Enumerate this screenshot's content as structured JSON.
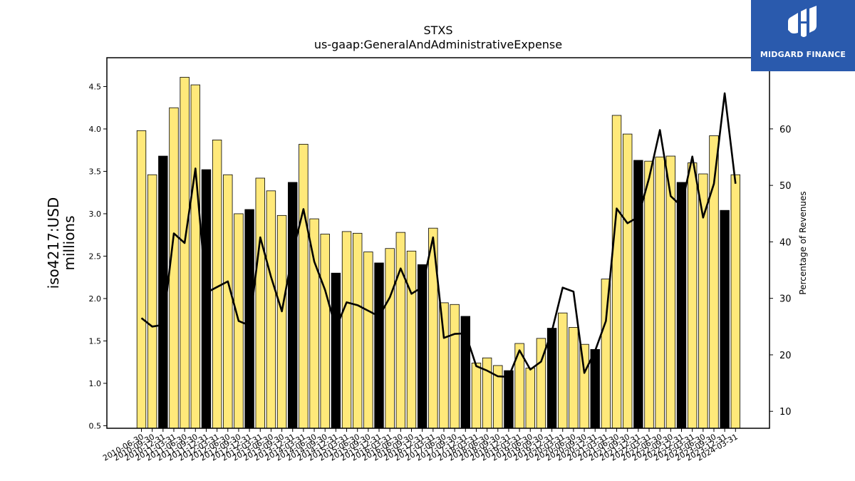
{
  "chart_data": {
    "type": "bar",
    "title": "STXS",
    "subtitle": "us-gaap:GeneralAndAdministrativeExpense",
    "ylabel_line1": "iso4217:USD",
    "ylabel_line2": "millions",
    "y2label": "Percentage of Revenues",
    "ylim": [
      0.47,
      4.84
    ],
    "y2lim": [
      7.0,
      72.6
    ],
    "yticks": [
      "0.5",
      "1.0",
      "1.5",
      "2.0",
      "2.5",
      "3.0",
      "3.5",
      "4.0",
      "4.5"
    ],
    "y2ticks": [
      "10",
      "20",
      "30",
      "40",
      "50",
      "60"
    ],
    "grid": false,
    "bar_colors": {
      "quarter": "#ffe97a",
      "annual": "#000000"
    },
    "line_color": "#000000",
    "categories": [
      "2010-06-30",
      "2010-09-30",
      "2010-12-31",
      "2011-03-31",
      "2011-06-30",
      "2011-09-30",
      "2011-12-31",
      "2012-03-31",
      "2012-06-30",
      "2012-09-30",
      "2012-12-31",
      "2013-03-31",
      "2013-06-30",
      "2013-09-30",
      "2013-12-31",
      "2014-03-31",
      "2014-06-30",
      "2014-09-30",
      "2014-12-31",
      "2015-03-31",
      "2015-06-30",
      "2015-09-30",
      "2015-12-31",
      "2016-03-31",
      "2016-06-30",
      "2016-09-30",
      "2016-12-31",
      "2017-03-31",
      "2017-06-30",
      "2017-09-30",
      "2017-12-31",
      "2018-03-31",
      "2018-06-30",
      "2018-09-30",
      "2018-12-31",
      "2019-03-31",
      "2019-06-30",
      "2019-09-30",
      "2019-12-31",
      "2020-03-31",
      "2020-06-30",
      "2020-09-30",
      "2020-12-31",
      "2021-03-31",
      "2021-06-30",
      "2021-09-30",
      "2021-12-31",
      "2022-03-31",
      "2022-06-30",
      "2022-09-30",
      "2022-12-31",
      "2023-03-31",
      "2023-06-30",
      "2023-09-30",
      "2023-12-31",
      "2024-03-31"
    ],
    "series": [
      {
        "kind": "bar",
        "values": [
          3.98,
          3.46,
          3.68,
          4.25,
          4.61,
          4.52,
          3.52,
          3.87,
          3.46,
          3.0,
          3.05,
          3.42,
          3.27,
          2.98,
          3.37,
          3.82,
          2.94,
          2.76,
          2.3,
          2.79,
          2.77,
          2.55,
          2.42,
          2.59,
          2.78,
          2.56,
          2.4,
          2.83,
          1.95,
          1.93,
          1.79,
          1.24,
          1.3,
          1.21,
          1.15,
          1.47,
          1.18,
          1.53,
          1.65,
          1.83,
          1.66,
          1.46,
          1.4,
          2.23,
          4.16,
          3.94,
          3.63,
          3.62,
          3.67,
          3.68,
          3.37,
          3.6,
          3.47,
          3.92,
          3.04,
          3.46
        ],
        "annual": [
          false,
          false,
          true,
          false,
          false,
          false,
          true,
          false,
          false,
          false,
          true,
          false,
          false,
          false,
          true,
          false,
          false,
          false,
          true,
          false,
          false,
          false,
          true,
          false,
          false,
          false,
          true,
          false,
          false,
          false,
          true,
          false,
          false,
          false,
          true,
          false,
          false,
          false,
          true,
          false,
          false,
          false,
          true,
          false,
          false,
          false,
          true,
          false,
          false,
          false,
          true,
          false,
          false,
          false,
          true,
          false
        ]
      },
      {
        "kind": "line",
        "axis": "right",
        "values": [
          26.5,
          25.0,
          25.3,
          41.5,
          39.8,
          53.0,
          31.0,
          32.0,
          33.0,
          26.0,
          25.2,
          40.8,
          33.8,
          27.7,
          38.0,
          45.8,
          36.5,
          31.5,
          24.7,
          29.3,
          28.8,
          27.8,
          26.8,
          30.2,
          35.3,
          30.8,
          32.0,
          40.8,
          23.0,
          23.7,
          23.8,
          18.0,
          17.2,
          16.2,
          16.1,
          20.8,
          17.4,
          18.8,
          24.2,
          31.9,
          31.2,
          16.8,
          20.7,
          26.0,
          45.9,
          43.3,
          44.4,
          51.3,
          59.8,
          48.1,
          46.3,
          55.1,
          44.3,
          50.3,
          66.3,
          50.3
        ]
      }
    ]
  },
  "logo": {
    "text": "MIDGARD FINANCE"
  }
}
